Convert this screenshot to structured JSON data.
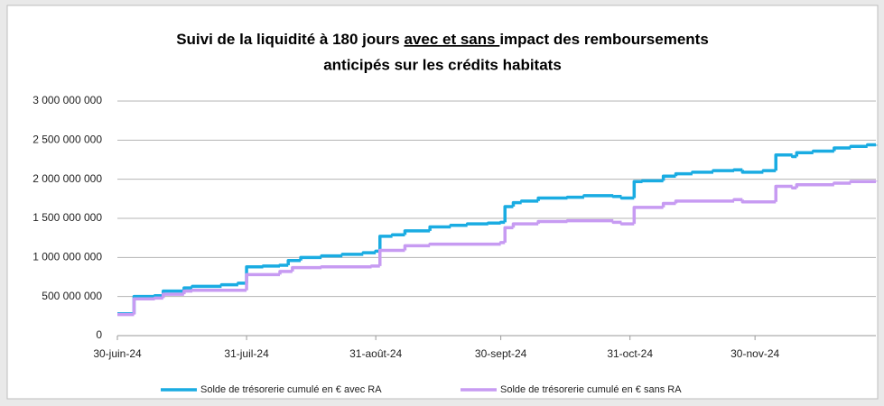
{
  "chart_data": {
    "type": "step",
    "title": [
      "Suivi de la liquidité à 180 jours ",
      "avec et sans ",
      "impact des remboursements",
      "anticipés sur les crédits habitats"
    ],
    "xlim": [
      "2024-06-30",
      "2024-12-29"
    ],
    "xticks": [
      {
        "value": "2024-06-30",
        "label": "30-juin-24"
      },
      {
        "value": "2024-07-31",
        "label": "31-juil-24"
      },
      {
        "value": "2024-08-31",
        "label": "31-août-24"
      },
      {
        "value": "2024-09-30",
        "label": "30-sept-24"
      },
      {
        "value": "2024-10-31",
        "label": "31-oct-24"
      },
      {
        "value": "2024-11-30",
        "label": "30-nov-24"
      }
    ],
    "ylim": [
      0,
      3000000000
    ],
    "yticks": [
      0,
      {
        "value": 500000000,
        "label": "500 000 000"
      },
      {
        "value": 1000000000,
        "label": "1 000 000 000"
      },
      {
        "value": 1500000000,
        "label": "1 500 000 000"
      },
      {
        "value": 2000000000,
        "label": "2 000 000 000"
      },
      {
        "value": 2500000000,
        "label": "2 500 000 000"
      },
      {
        "value": 3000000000,
        "label": "3 000 000 000"
      }
    ],
    "grid": true,
    "legend": "bottom",
    "series": [
      {
        "name": "Solde de trésorerie cumulé en € avec RA",
        "color": "#1aace2",
        "x": [
          "2024-06-30",
          "2024-07-04",
          "2024-07-09",
          "2024-07-11",
          "2024-07-16",
          "2024-07-18",
          "2024-07-25",
          "2024-07-29",
          "2024-07-31",
          "2024-08-04",
          "2024-08-08",
          "2024-08-10",
          "2024-08-13",
          "2024-08-18",
          "2024-08-23",
          "2024-08-28",
          "2024-08-31",
          "2024-09-01",
          "2024-09-04",
          "2024-09-07",
          "2024-09-13",
          "2024-09-18",
          "2024-09-22",
          "2024-09-27",
          "2024-09-30",
          "2024-10-01",
          "2024-10-03",
          "2024-10-05",
          "2024-10-09",
          "2024-10-16",
          "2024-10-20",
          "2024-10-27",
          "2024-10-29",
          "2024-11-01",
          "2024-11-03",
          "2024-11-08",
          "2024-11-11",
          "2024-11-15",
          "2024-11-20",
          "2024-11-25",
          "2024-11-27",
          "2024-12-02",
          "2024-12-05",
          "2024-12-09",
          "2024-12-10",
          "2024-12-14",
          "2024-12-19",
          "2024-12-23",
          "2024-12-27",
          "2024-12-29"
        ],
        "values": [
          280000000,
          500000000,
          510000000,
          570000000,
          610000000,
          630000000,
          650000000,
          670000000,
          880000000,
          890000000,
          900000000,
          960000000,
          1000000000,
          1020000000,
          1040000000,
          1060000000,
          1080000000,
          1270000000,
          1290000000,
          1340000000,
          1390000000,
          1410000000,
          1430000000,
          1440000000,
          1450000000,
          1650000000,
          1700000000,
          1720000000,
          1760000000,
          1770000000,
          1790000000,
          1780000000,
          1760000000,
          1970000000,
          1980000000,
          2040000000,
          2070000000,
          2090000000,
          2110000000,
          2120000000,
          2090000000,
          2110000000,
          2310000000,
          2290000000,
          2340000000,
          2360000000,
          2400000000,
          2420000000,
          2440000000,
          2430000000
        ]
      },
      {
        "name": "Solde de trésorerie cumulé en € sans RA",
        "color": "#c79bf2",
        "x": [
          "2024-06-30",
          "2024-07-04",
          "2024-07-09",
          "2024-07-11",
          "2024-07-16",
          "2024-07-18",
          "2024-07-31",
          "2024-08-08",
          "2024-08-11",
          "2024-08-18",
          "2024-08-30",
          "2024-09-01",
          "2024-09-07",
          "2024-09-13",
          "2024-09-30",
          "2024-10-01",
          "2024-10-03",
          "2024-10-09",
          "2024-10-16",
          "2024-10-27",
          "2024-10-29",
          "2024-11-01",
          "2024-11-08",
          "2024-11-11",
          "2024-11-25",
          "2024-11-27",
          "2024-12-05",
          "2024-12-09",
          "2024-12-10",
          "2024-12-19",
          "2024-12-23",
          "2024-12-29"
        ],
        "values": [
          270000000,
          470000000,
          480000000,
          530000000,
          570000000,
          580000000,
          780000000,
          820000000,
          870000000,
          880000000,
          890000000,
          1090000000,
          1150000000,
          1170000000,
          1190000000,
          1380000000,
          1430000000,
          1460000000,
          1470000000,
          1450000000,
          1430000000,
          1640000000,
          1690000000,
          1720000000,
          1740000000,
          1710000000,
          1910000000,
          1890000000,
          1930000000,
          1950000000,
          1970000000,
          1980000000
        ]
      }
    ]
  }
}
